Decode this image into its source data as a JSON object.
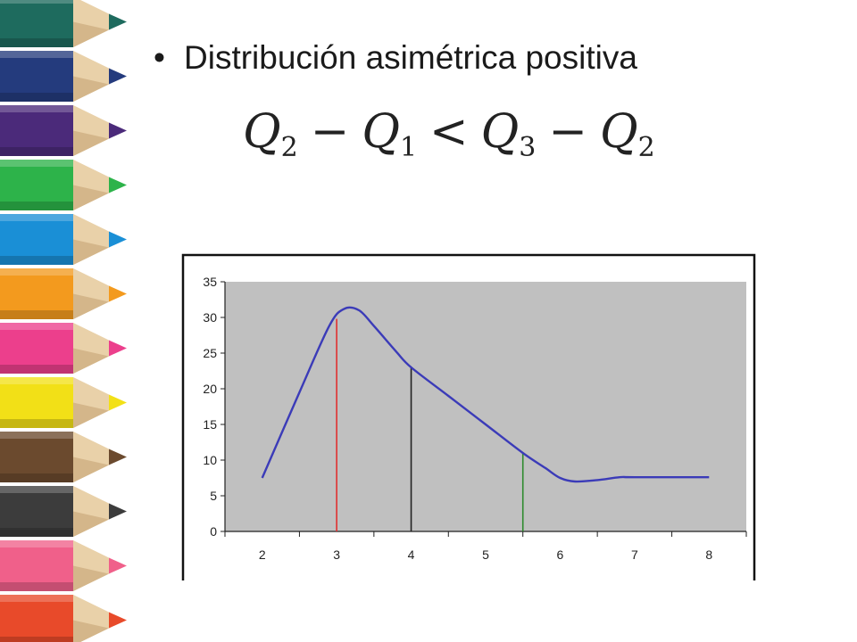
{
  "slide": {
    "bullet_symbol": "•",
    "bullet_text": "Distribución asimétrica positiva",
    "formula": {
      "terms": [
        {
          "letter": "Q",
          "sub": "2"
        },
        {
          "op": "−"
        },
        {
          "letter": "Q",
          "sub": "1"
        },
        {
          "op": "<"
        },
        {
          "letter": "Q",
          "sub": "3"
        },
        {
          "op": "−"
        },
        {
          "letter": "Q",
          "sub": "2"
        }
      ]
    }
  },
  "decoration": {
    "pencil_colors": [
      "#1e6b5e",
      "#243b7d",
      "#4b2a7a",
      "#2db34a",
      "#1a8fd6",
      "#f39a1e",
      "#ec3f8c",
      "#f2e017",
      "#6b4a2e",
      "#3c3c3c",
      "#f0608a",
      "#e84a2a"
    ]
  },
  "chart_data": {
    "type": "line",
    "x": [
      2.0,
      2.5,
      2.9,
      3.1,
      3.3,
      3.5,
      3.8,
      4.0,
      4.5,
      5.0,
      5.5,
      5.8,
      6.0,
      6.2,
      6.5,
      6.8,
      7.0,
      8.0
    ],
    "y": [
      7.5,
      19.5,
      28.8,
      31.2,
      31.0,
      28.8,
      25.2,
      23.0,
      19.0,
      15.0,
      11.0,
      8.9,
      7.5,
      7.0,
      7.2,
      7.6,
      7.6,
      7.6
    ],
    "series_color": "#3b3bb8",
    "xlim": [
      1.5,
      8.5
    ],
    "ylim": [
      0,
      35
    ],
    "xticks": [
      2,
      3,
      4,
      5,
      6,
      7,
      8
    ],
    "yticks": [
      0,
      5,
      10,
      15,
      20,
      25,
      30,
      35
    ],
    "quartile_lines": [
      {
        "x": 3.0,
        "y": 29.8,
        "color": "#e03030"
      },
      {
        "x": 4.0,
        "y": 23.0,
        "color": "#222222"
      },
      {
        "x": 5.5,
        "y": 11.0,
        "color": "#2e8b2e"
      }
    ],
    "plot_background": "#c0c0c0",
    "grid": false,
    "legend": "none"
  }
}
